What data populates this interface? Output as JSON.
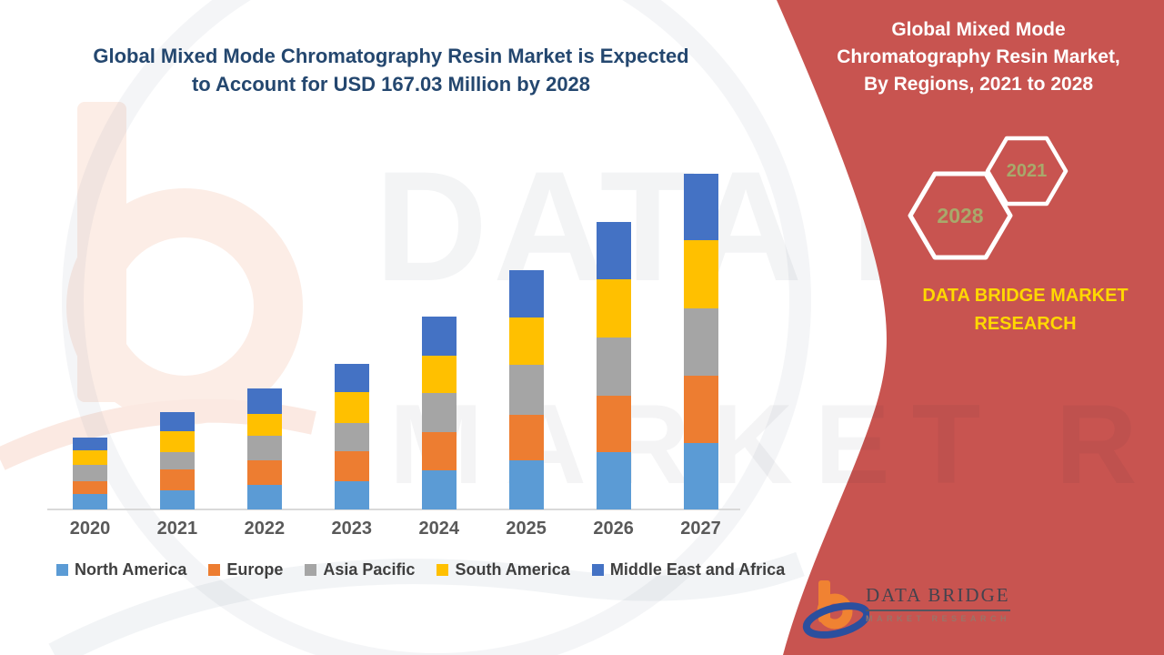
{
  "header": {
    "title_line1": "Global Mixed Mode Chromatography Resin Market is Expected",
    "title_line2": "to Account for USD 167.03 Million by 2028"
  },
  "side_panel": {
    "title_line1": "Global Mixed Mode",
    "title_line2": "Chromatography Resin Market,",
    "title_line3": "By Regions, 2021 to 2028",
    "hexagon_back_year": "2028",
    "hexagon_front_year": "2021",
    "brand_line1": "DATA BRIDGE MARKET",
    "brand_line2": "RESEARCH"
  },
  "footer_logo": {
    "wordmark": "DATA BRIDGE",
    "tagline": "MARKET RESEARCH"
  },
  "watermark": {
    "line1": "DATA BRIDGE",
    "line2": "MARKET RESEARCH"
  },
  "colors": {
    "panel_red": "#C85450",
    "brand_yellow": "#FFD800",
    "hexagon_year_text": "#A8A96B",
    "title_blue": "#24476F",
    "axis_gray": "#D9D9D9"
  },
  "chart_data": {
    "type": "bar",
    "stacked": true,
    "unit": "USD Million (estimated; chart shows no value axis)",
    "categories": [
      "2020",
      "2021",
      "2022",
      "2023",
      "2024",
      "2025",
      "2026",
      "2027"
    ],
    "series": [
      {
        "name": "North America",
        "color": "#5B9BD5",
        "values": [
          6.7,
          8.7,
          11.1,
          12.7,
          17.5,
          21.9,
          25.5,
          29.6
        ]
      },
      {
        "name": "Europe",
        "color": "#ED7D31",
        "values": [
          5.7,
          9.1,
          10.8,
          13.3,
          16.9,
          20.4,
          25.1,
          30.1
        ]
      },
      {
        "name": "Asia Pacific",
        "color": "#A5A5A5",
        "values": [
          7.3,
          7.6,
          11.1,
          12.4,
          17.6,
          22.0,
          26.0,
          30.0
        ]
      },
      {
        "name": "South America",
        "color": "#FFC000",
        "values": [
          6.7,
          9.5,
          9.7,
          13.7,
          16.3,
          21.3,
          25.7,
          30.1
        ]
      },
      {
        "name": "Middle East and Africa",
        "color": "#4472C4",
        "values": [
          5.6,
          8.3,
          11.1,
          12.7,
          17.7,
          21.1,
          25.6,
          29.7
        ]
      }
    ],
    "totals": [
      32.0,
      43.2,
      53.8,
      64.8,
      86.0,
      106.7,
      127.9,
      149.5
    ],
    "title": "",
    "xlabel": "",
    "ylabel": "",
    "ylim": [
      0,
      160
    ],
    "grid": false,
    "legend_position": "bottom"
  }
}
